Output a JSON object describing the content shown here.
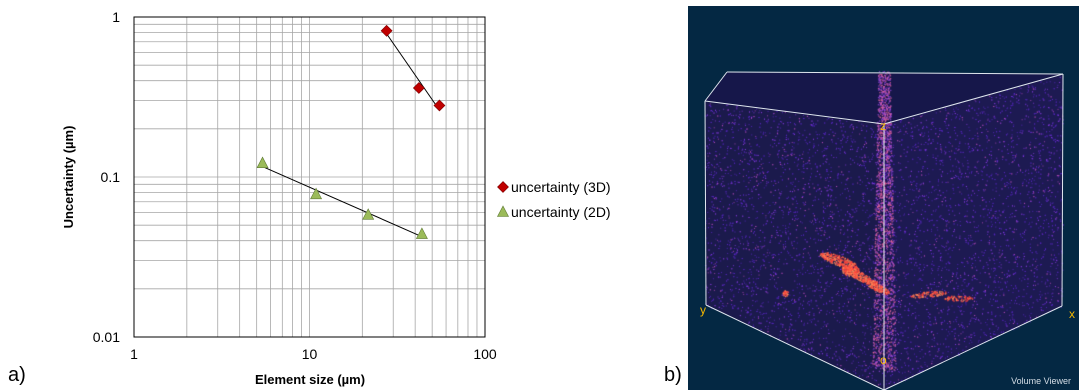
{
  "panels": {
    "a": "a)",
    "b": "b)"
  },
  "chart_data": {
    "type": "scatter",
    "title": "",
    "xlabel": "Element size (µm)",
    "ylabel": "Uncertainty (µm)",
    "x_scale": "log",
    "y_scale": "log",
    "xlim": [
      1,
      100
    ],
    "ylim": [
      0.01,
      1
    ],
    "x_ticks": [
      1,
      10,
      100
    ],
    "y_ticks": [
      0.01,
      0.1,
      1
    ],
    "x_tick_labels": [
      "1",
      "10",
      "100"
    ],
    "y_tick_labels": [
      "0.01",
      "0.1",
      "1"
    ],
    "grid": true,
    "legend": "right",
    "series": [
      {
        "name": "uncertainty (3D)",
        "marker": "diamond",
        "color": "#c00000",
        "x": [
          27.5,
          42,
          55
        ],
        "y": [
          0.82,
          0.36,
          0.28
        ],
        "trendline": true
      },
      {
        "name": "uncertainty (2D)",
        "marker": "triangle",
        "color": "#9bbb59",
        "x": [
          5.4,
          10.9,
          21.6,
          43.7
        ],
        "y": [
          0.122,
          0.078,
          0.058,
          0.044
        ],
        "trendline": true
      }
    ]
  },
  "viewer": {
    "background": "#042843",
    "axis_label_color": "#f5b800",
    "axes": {
      "x": "x",
      "y": "y",
      "z": "z",
      "origin": "o"
    },
    "caption": "Volume Viewer"
  }
}
